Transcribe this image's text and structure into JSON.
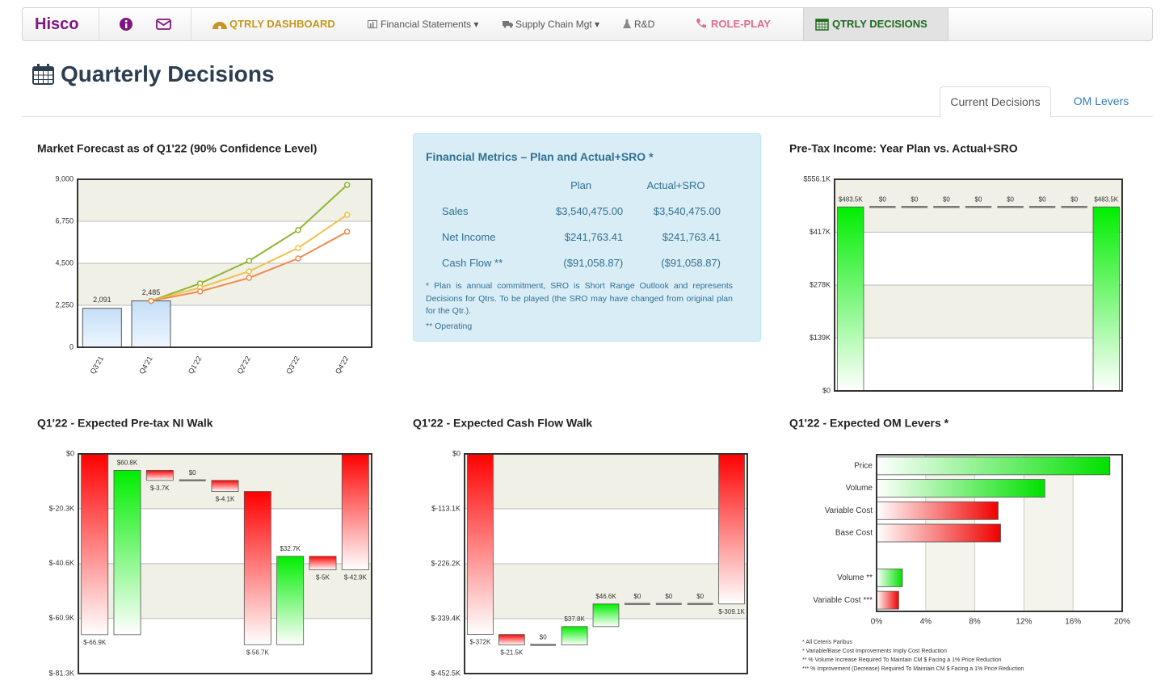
{
  "nav": {
    "brand": "Hisco",
    "items": [
      "QTRLY DASHBOARD",
      "Financial Statements",
      "Supply Chain Mgt",
      "R&D",
      "ROLE-PLAY",
      "QTRLY DECISIONS"
    ]
  },
  "title": "Quarterly Decisions",
  "tabs": [
    "Current Decisions",
    "OM Levers"
  ],
  "market_forecast": {
    "type": "combo",
    "title": "Market Forecast as of Q1'22 (90% Confidence Level)",
    "categories": [
      "Q3'21",
      "Q4'21",
      "Q1'22",
      "Q2'22",
      "Q3'22",
      "Q4'22"
    ],
    "series": [
      {
        "type": "bar",
        "color": "#cfe5fa",
        "values": [
          2091,
          2485,
          null,
          null,
          null,
          null
        ],
        "value_labels": [
          "2,091",
          "2,485",
          null,
          null,
          null,
          null
        ]
      },
      {
        "type": "line",
        "color": "#8db531",
        "values": [
          null,
          2485,
          3420,
          4630,
          6280,
          8700
        ]
      },
      {
        "type": "line",
        "color": "#f0c24a",
        "values": [
          null,
          2485,
          3200,
          4070,
          5320,
          7100
        ]
      },
      {
        "type": "line",
        "color": "#f08a50",
        "values": [
          null,
          2485,
          2990,
          3720,
          4760,
          6190
        ]
      }
    ],
    "ylim": [
      0,
      9000
    ],
    "yticks": [
      0,
      {
        "value": 2250,
        "label": "2,250"
      },
      {
        "value": 4500,
        "label": "4,500"
      },
      {
        "value": 6750,
        "label": "6,750"
      },
      {
        "value": 9000,
        "label": "9,000"
      }
    ]
  },
  "metrics": {
    "title": "Financial Metrics – Plan and Actual+SRO *",
    "columns": [
      "Plan",
      "Actual+SRO"
    ],
    "rows": [
      {
        "label": "Sales",
        "plan": "$3,540,475.00",
        "actual": "$3,540,475.00"
      },
      {
        "label": "Net Income",
        "plan": "$241,763.41",
        "actual": "$241,763.41"
      },
      {
        "label": "Cash Flow **",
        "plan": "($91,058.87)",
        "actual": "($91,058.87)"
      }
    ],
    "notes": [
      "* Plan is annual commitment, SRO is Short Range Outlook and represents Decisions for Qtrs. To be played (the SRO may have changed from original plan for the Qtr.).",
      "** Operating"
    ]
  },
  "pretax": {
    "type": "waterfall",
    "title": "Pre-Tax Income: Year Plan vs. Actual+SRO",
    "values": [
      483.5,
      0,
      0,
      0,
      0,
      0,
      0,
      0,
      483.5
    ],
    "value_labels": [
      "$483.5K",
      "$0",
      "$0",
      "$0",
      "$0",
      "$0",
      "$0",
      "$0",
      "$483.5K"
    ],
    "totals": [
      0,
      8
    ],
    "ylim": [
      0,
      556.1
    ],
    "yticks": [
      {
        "value": 0,
        "label": "$0"
      },
      {
        "value": 139,
        "label": "$139K"
      },
      {
        "value": 278,
        "label": "$278K"
      },
      {
        "value": 417,
        "label": "$417K"
      },
      {
        "value": 556.1,
        "label": "$556.1K"
      }
    ]
  },
  "ni_walk": {
    "type": "waterfall",
    "title": "Q1'22 - Expected Pre-tax NI Walk",
    "values": [
      -66.9,
      60.8,
      -3.7,
      0,
      -4.1,
      -56.7,
      32.7,
      -5,
      -42.9
    ],
    "value_labels": [
      "$-66.9K",
      "$60.8K",
      "$-3.7K",
      "$0",
      "$-4.1K",
      "$-56.7K",
      "$32.7K",
      "$-5K",
      "$-42.9K"
    ],
    "totals": [
      0,
      8
    ],
    "ylim": [
      -81.3,
      0
    ],
    "yticks": [
      {
        "value": 0,
        "label": "$0"
      },
      {
        "value": -20.3,
        "label": "$-20.3K"
      },
      {
        "value": -40.6,
        "label": "$-40.6K"
      },
      {
        "value": -60.9,
        "label": "$-60.9K"
      },
      {
        "value": -81.3,
        "label": "$-81.3K"
      }
    ]
  },
  "cf_walk": {
    "type": "waterfall",
    "title": "Q1'22 - Expected Cash Flow Walk",
    "values": [
      -372,
      -21.5,
      0,
      37.8,
      46.6,
      0,
      0,
      0,
      -309.1
    ],
    "value_labels": [
      "$-372K",
      "$-21.5K",
      "$0",
      "$37.8K",
      "$46.6K",
      "$0",
      "$0",
      "$0",
      "$-309.1K"
    ],
    "totals": [
      0,
      8
    ],
    "ylim": [
      -452.5,
      0
    ],
    "yticks": [
      {
        "value": 0,
        "label": "$0"
      },
      {
        "value": -113.1,
        "label": "$-113.1K"
      },
      {
        "value": -226.2,
        "label": "$-226.2K"
      },
      {
        "value": -339.4,
        "label": "$-339.4K"
      },
      {
        "value": -452.5,
        "label": "$-452.5K"
      }
    ]
  },
  "om_levers": {
    "type": "hbar",
    "title": "Q1'22 - Expected OM Levers *",
    "categories": [
      "Price",
      "Volume",
      "Variable Cost",
      "Base Cost",
      null,
      "Volume **",
      "Variable Cost ***"
    ],
    "values": [
      19,
      13.7,
      9.9,
      10.1,
      null,
      2.1,
      1.8
    ],
    "colors": [
      "#00e000",
      "#00e000",
      "#f00000",
      "#f00000",
      null,
      "#00e000",
      "#f00000"
    ],
    "xlim": [
      0,
      20
    ],
    "xticks": [
      {
        "value": 0,
        "label": "0%"
      },
      {
        "value": 4,
        "label": "4%"
      },
      {
        "value": 8,
        "label": "8%"
      },
      {
        "value": 12,
        "label": "12%"
      },
      {
        "value": 16,
        "label": "16%"
      },
      {
        "value": 20,
        "label": "20%"
      }
    ],
    "notes": [
      "* All Ceteris Paribus",
      "* Variable/Base Cost Improvements Imply Cost Reduction",
      "** % Volume Increase Required To Maintain CM $ Facing a 1% Price Reduction",
      "*** % Improvement (Decrease) Required To Maintain CM $ Facing a 1% Price Reduction"
    ]
  }
}
